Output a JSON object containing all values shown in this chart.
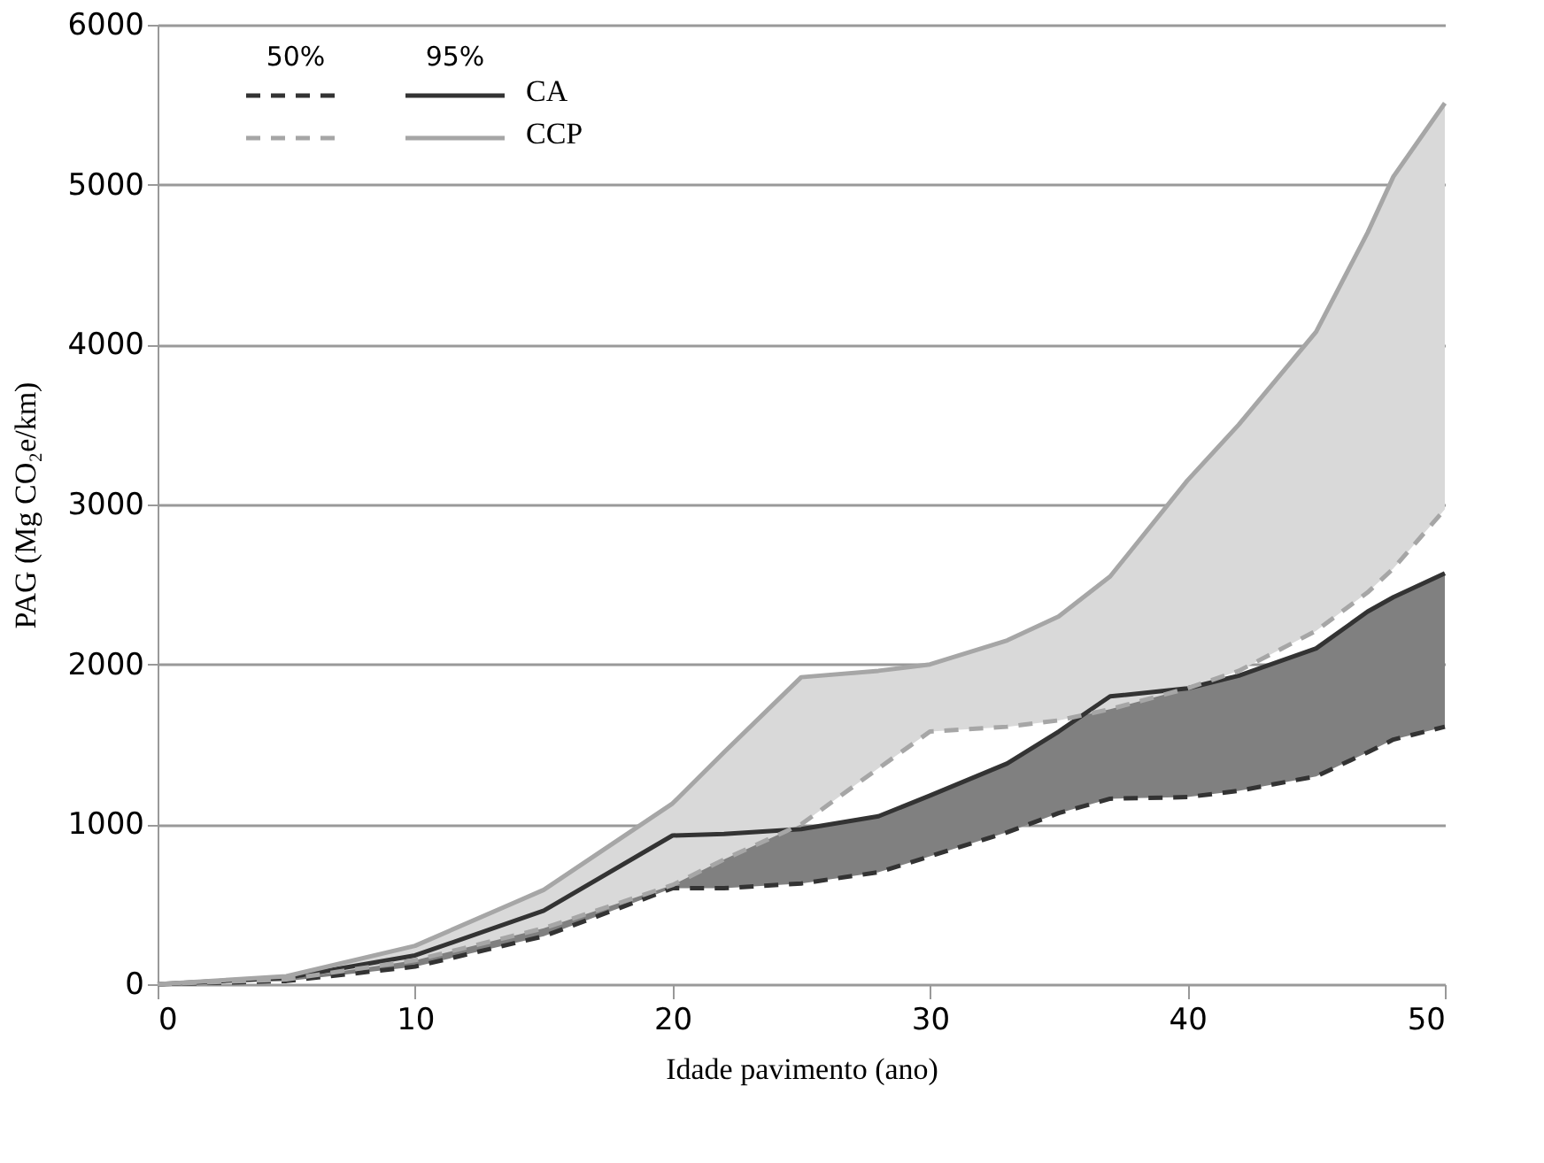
{
  "chart_data": {
    "type": "line",
    "xlabel": "Idade pavimento (ano)",
    "ylabel": "PAG (Mg CO₂e/km)",
    "x": [
      0,
      5,
      10,
      15,
      20,
      22,
      25,
      28,
      30,
      33,
      35,
      37,
      40,
      42,
      45,
      47,
      48,
      50
    ],
    "series": [
      {
        "color": "#333333",
        "line_style": "dashed",
        "values": [
          0,
          20,
          110,
          300,
          600,
          600,
          630,
          700,
          800,
          950,
          1070,
          1160,
          1170,
          1210,
          1300,
          1450,
          1530,
          1610
        ]
      },
      {
        "name": "CA",
        "color": "#333333",
        "line_style": "solid",
        "lower": [
          0,
          20,
          110,
          300,
          600,
          600,
          630,
          700,
          800,
          950,
          1070,
          1160,
          1170,
          1210,
          1300,
          1450,
          1530,
          1610
        ],
        "upper": [
          0,
          40,
          180,
          460,
          930,
          940,
          970,
          1050,
          1180,
          1380,
          1580,
          1800,
          1850,
          1930,
          2100,
          2330,
          2420,
          2570
        ],
        "values": [
          0,
          40,
          180,
          460,
          930,
          940,
          970,
          1050,
          1180,
          1380,
          1580,
          1800,
          1850,
          1930,
          2100,
          2330,
          2420,
          2570
        ]
      },
      {
        "color": "#a6a6a6",
        "line_style": "dashed",
        "values": [
          0,
          30,
          150,
          350,
          620,
          780,
          1000,
          1350,
          1580,
          1610,
          1650,
          1720,
          1850,
          1960,
          2210,
          2450,
          2600,
          2970
        ]
      },
      {
        "name": "CCP",
        "color": "#a6a6a6",
        "line_style": "solid",
        "lower": [
          0,
          30,
          150,
          350,
          620,
          780,
          1000,
          1350,
          1580,
          1610,
          1650,
          1720,
          1850,
          1960,
          2210,
          2450,
          2600,
          2970
        ],
        "upper": [
          0,
          50,
          240,
          590,
          1130,
          1450,
          1920,
          1960,
          2000,
          2150,
          2300,
          2550,
          3150,
          3500,
          4080,
          4700,
          5050,
          5510
        ],
        "values": [
          0,
          50,
          240,
          590,
          1130,
          1450,
          1920,
          1960,
          2000,
          2150,
          2300,
          2550,
          3150,
          3500,
          4080,
          4700,
          5050,
          5510
        ]
      }
    ],
    "annotations": [
      "50%",
      "95%"
    ],
    "xlim": [
      0,
      50
    ],
    "xticks": [
      0,
      10,
      20,
      30,
      40,
      50
    ],
    "ylim": [
      0,
      6000
    ],
    "yticks": [
      0,
      1000,
      2000,
      3000,
      4000,
      5000,
      6000
    ],
    "grid": "y",
    "legend": "top left",
    "marker": "none"
  }
}
